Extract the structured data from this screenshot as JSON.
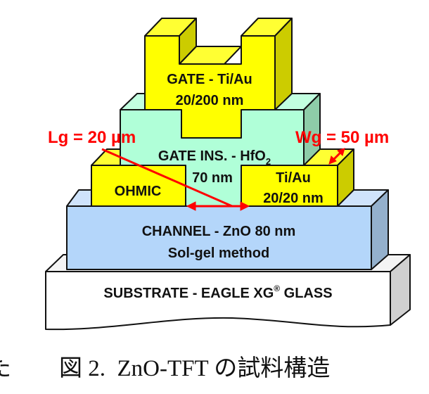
{
  "diagram": {
    "layers": {
      "gate": {
        "line1": "GATE - Ti/Au",
        "line2": "20/200 nm",
        "color": "#ffff00"
      },
      "gate_insulator": {
        "line1": "GATE INS. - HfO",
        "subscript": "2",
        "line2": "70 nm",
        "color": "#b0ffd8"
      },
      "ohmic_left": {
        "label": "OHMIC",
        "color": "#ffff00"
      },
      "ohmic_right": {
        "line1": "Ti/Au",
        "line2": "20/20 nm",
        "color": "#ffff00"
      },
      "channel": {
        "line1": "CHANNEL - ZnO 80 nm",
        "line2": "Sol-gel method",
        "color": "#b4d6fa"
      },
      "substrate": {
        "text_before": "SUBSTRATE - EAGLE XG",
        "superscript": "®",
        "text_after": " GLASS",
        "color": "#ffffff"
      }
    },
    "annotations": {
      "lg": "Lg = 20 µm",
      "wg": "Wg = 50 µm",
      "color": "#ff0000"
    }
  },
  "caption": {
    "cut_char": "た",
    "figure_number": "図 2.",
    "text": "ZnO-TFT の試料構造"
  }
}
